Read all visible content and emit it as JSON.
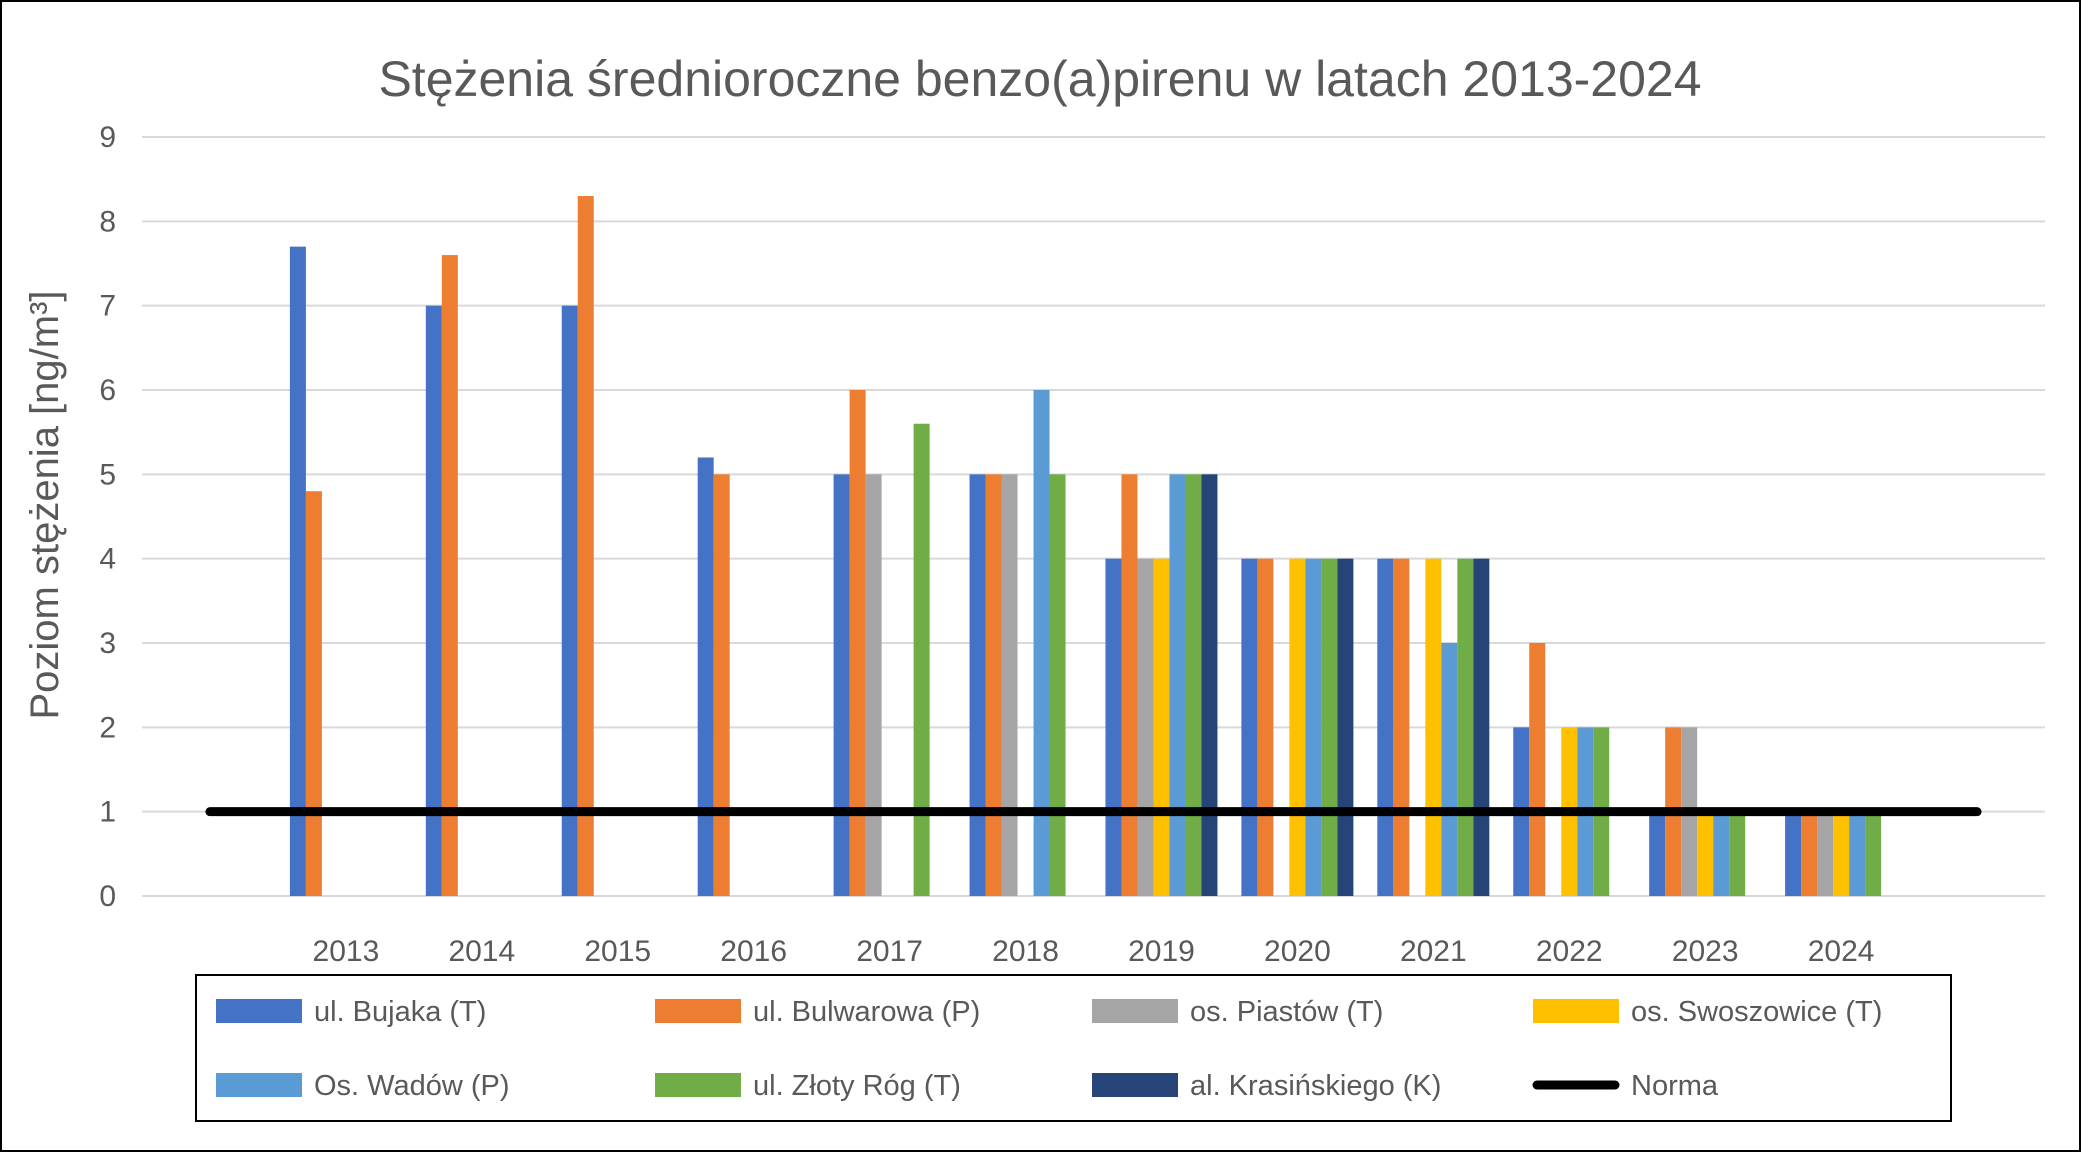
{
  "chart_data": {
    "type": "bar",
    "title": "Stężenia średnioroczne benzo(a)pirenu w latach 2013-2024",
    "ylabel": "Poziom stężenia [ng/m³]",
    "xlabel": "",
    "ylim": [
      0,
      9
    ],
    "yticks": [
      "0",
      "1",
      "2",
      "3",
      "4",
      "5",
      "6",
      "7",
      "8",
      "9"
    ],
    "grid": true,
    "legend_position": "bottom",
    "categories": [
      "2013",
      "2014",
      "2015",
      "2016",
      "2017",
      "2018",
      "2019",
      "2020",
      "2021",
      "2022",
      "2023",
      "2024"
    ],
    "series": [
      {
        "name": "ul. Bujaka (T)",
        "color": "#4472C4",
        "values": [
          7.7,
          7,
          7,
          5.2,
          5,
          5,
          4,
          4,
          4,
          2,
          1,
          1
        ]
      },
      {
        "name": "ul. Bulwarowa (P)",
        "color": "#ED7D31",
        "values": [
          4.8,
          7.6,
          8.3,
          5,
          6,
          5,
          5,
          4,
          4,
          3,
          2,
          1
        ]
      },
      {
        "name": "os. Piastów (T)",
        "color": "#A5A5A5",
        "values": [
          null,
          null,
          null,
          null,
          5,
          5,
          4,
          null,
          null,
          null,
          2,
          1
        ]
      },
      {
        "name": "os. Swoszowice (T)",
        "color": "#FFC000",
        "values": [
          null,
          null,
          null,
          null,
          null,
          null,
          4,
          4,
          4,
          2,
          1,
          1
        ]
      },
      {
        "name": "Os. Wadów (P)",
        "color": "#5B9BD5",
        "values": [
          null,
          null,
          null,
          null,
          null,
          6,
          5,
          4,
          3,
          2,
          1,
          1
        ]
      },
      {
        "name": "ul. Złoty Róg (T)",
        "color": "#70AD47",
        "values": [
          null,
          null,
          null,
          null,
          5.6,
          5,
          5,
          4,
          4,
          2,
          1,
          1
        ]
      },
      {
        "name": "al. Krasińskiego (K)",
        "color": "#264478",
        "values": [
          null,
          null,
          null,
          null,
          null,
          null,
          5,
          4,
          4,
          null,
          null,
          null
        ]
      }
    ],
    "reference_line": {
      "name": "Norma",
      "value": 1,
      "color": "#000000"
    }
  }
}
